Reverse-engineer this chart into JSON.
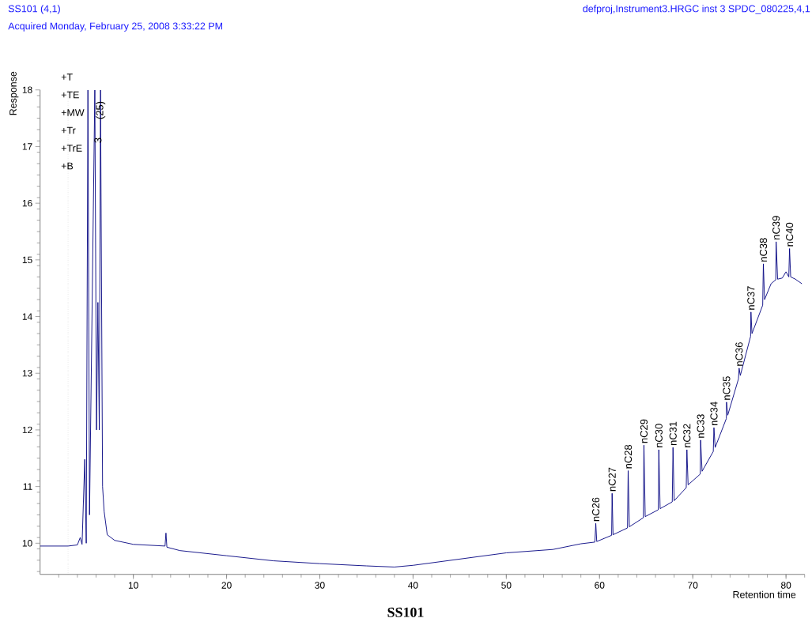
{
  "chart_data": {
    "type": "line",
    "title": "SS101",
    "xlabel": "Retention time",
    "ylabel": "Response",
    "xlim": [
      0,
      82
    ],
    "ylim": [
      9.45,
      18
    ],
    "xticks": [
      10,
      20,
      30,
      40,
      50,
      60,
      70,
      80
    ],
    "yticks": [
      10,
      11,
      12,
      13,
      14,
      15,
      16,
      17,
      18
    ],
    "grid": false,
    "marker": "none",
    "line_style": "solid",
    "series": [
      {
        "color": "#000080",
        "x": [
          0,
          3,
          4.0,
          4.3,
          4.5,
          4.79,
          4.95,
          5.13,
          5.3,
          5.87,
          6.05,
          6.2,
          6.35,
          6.48,
          6.7,
          6.87,
          7.2,
          8,
          10,
          13.4,
          13.5,
          13.6,
          15,
          20,
          25,
          30,
          35,
          38,
          40,
          45,
          50,
          55,
          58,
          59.5,
          59.6,
          59.7,
          61.3,
          61.35,
          61.45,
          63.0,
          63.07,
          63.2,
          64.7,
          64.76,
          64.9,
          66.3,
          66.36,
          66.5,
          67.8,
          67.88,
          68.0,
          69.3,
          69.37,
          69.5,
          70.8,
          70.84,
          71.0,
          72.2,
          72.27,
          72.4,
          73.6,
          73.62,
          73.75,
          74.9,
          74.97,
          75.1,
          76.2,
          76.24,
          76.35,
          77.5,
          77.57,
          77.7,
          78.4,
          78.9,
          78.94,
          79.1,
          79.6,
          80.0,
          80.3,
          80.38,
          80.5,
          81.0,
          81.7
        ],
        "values": [
          9.95,
          9.95,
          9.97,
          10.1,
          9.98,
          11.48,
          10.0,
          18,
          10.5,
          18,
          12,
          14.25,
          12,
          18,
          11,
          10.56,
          10.15,
          10.05,
          9.98,
          9.95,
          10.18,
          9.93,
          9.87,
          9.78,
          9.69,
          9.64,
          9.6,
          9.58,
          9.61,
          9.72,
          9.83,
          9.89,
          9.99,
          10.02,
          10.35,
          10.03,
          10.14,
          10.88,
          10.15,
          10.27,
          11.28,
          10.29,
          10.45,
          11.73,
          10.47,
          10.59,
          11.65,
          10.61,
          10.73,
          11.69,
          10.75,
          10.98,
          11.65,
          11.03,
          11.22,
          11.82,
          11.27,
          11.62,
          12.04,
          11.69,
          12.2,
          12.49,
          12.26,
          12.9,
          13.09,
          12.96,
          13.65,
          14.08,
          13.7,
          14.2,
          14.93,
          14.3,
          14.58,
          14.65,
          15.32,
          14.66,
          14.68,
          14.79,
          14.7,
          15.2,
          14.7,
          14.66,
          14.58
        ]
      }
    ],
    "ref_lines": [
      {
        "axis": "x",
        "value": 3.0,
        "color": "#808080",
        "line_style": "dotted"
      }
    ],
    "annotations": [
      "SS101 (4,1)",
      "Acquired Monday, February 25, 2008 3:33:22 PM",
      "defproj,Instrument3.HRGC inst 3 SPDC_080225,4,1",
      "+T",
      "+TE",
      "+MW",
      "+Tr",
      "+TrE",
      "+B",
      {
        "text": "3",
        "x": 6.2,
        "y": 17.03
      },
      {
        "text": "(25)",
        "x": 6.48,
        "y": 17.45
      },
      {
        "text": "nC26",
        "x": 59.6,
        "y": 10.35
      },
      {
        "text": "nC27",
        "x": 61.35,
        "y": 10.88
      },
      {
        "text": "nC28",
        "x": 63.07,
        "y": 11.28
      },
      {
        "text": "nC29",
        "x": 64.76,
        "y": 11.73
      },
      {
        "text": "nC30",
        "x": 66.36,
        "y": 11.65
      },
      {
        "text": "nC31",
        "x": 67.88,
        "y": 11.69
      },
      {
        "text": "nC32",
        "x": 69.37,
        "y": 11.65
      },
      {
        "text": "nC33",
        "x": 70.84,
        "y": 11.82
      },
      {
        "text": "nC34",
        "x": 72.27,
        "y": 12.04
      },
      {
        "text": "nC35",
        "x": 73.62,
        "y": 12.49
      },
      {
        "text": "nC36",
        "x": 74.97,
        "y": 13.09
      },
      {
        "text": "nC37",
        "x": 76.24,
        "y": 14.08
      },
      {
        "text": "nC38",
        "x": 77.57,
        "y": 14.93
      },
      {
        "text": "nC39",
        "x": 78.94,
        "y": 15.32
      },
      {
        "text": "nC40",
        "x": 80.38,
        "y": 15.2
      }
    ]
  }
}
